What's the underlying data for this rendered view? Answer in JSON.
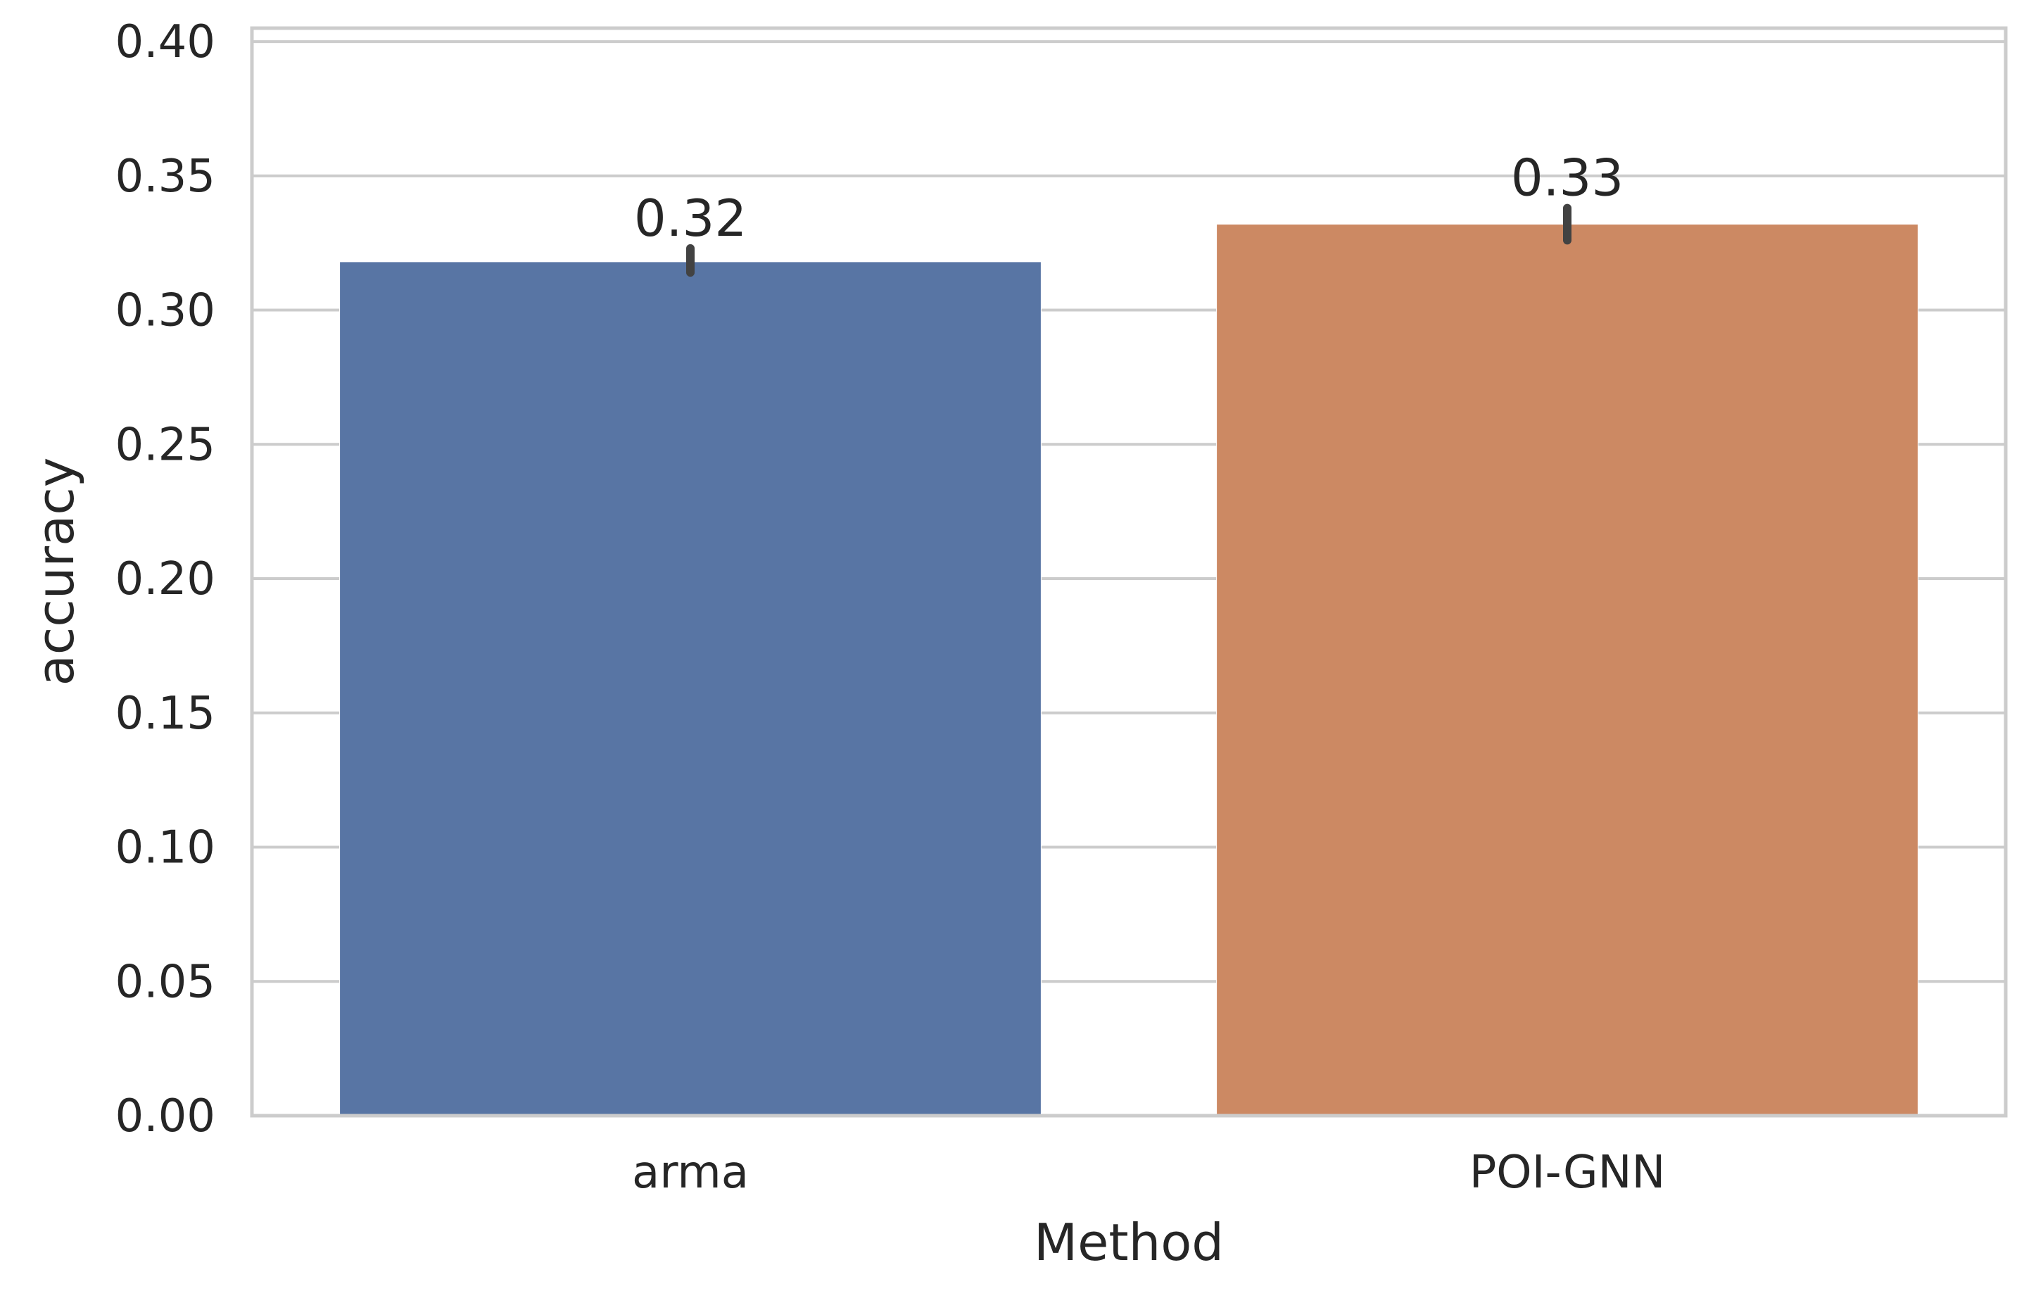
{
  "chart_data": {
    "type": "bar",
    "categories": [
      "arma",
      "POI-GNN"
    ],
    "values": [
      0.318,
      0.332
    ],
    "error_bars": [
      {
        "low": 0.314,
        "high": 0.323
      },
      {
        "low": 0.326,
        "high": 0.338
      }
    ],
    "data_labels": [
      "0.32",
      "0.33"
    ],
    "colors": [
      "#5875a4",
      "#cc8963"
    ],
    "xlabel": "Method",
    "ylabel": "accuracy",
    "ylim": [
      0,
      0.405
    ],
    "yticks": [
      0.0,
      0.05,
      0.1,
      0.15,
      0.2,
      0.25,
      0.3,
      0.35,
      0.4
    ],
    "ytick_labels": [
      "0.00",
      "0.05",
      "0.10",
      "0.15",
      "0.20",
      "0.25",
      "0.30",
      "0.35",
      "0.40"
    ],
    "grid": "y",
    "grid_color": "#cccccc",
    "error_color": "#424242",
    "text_color": "#262626"
  }
}
